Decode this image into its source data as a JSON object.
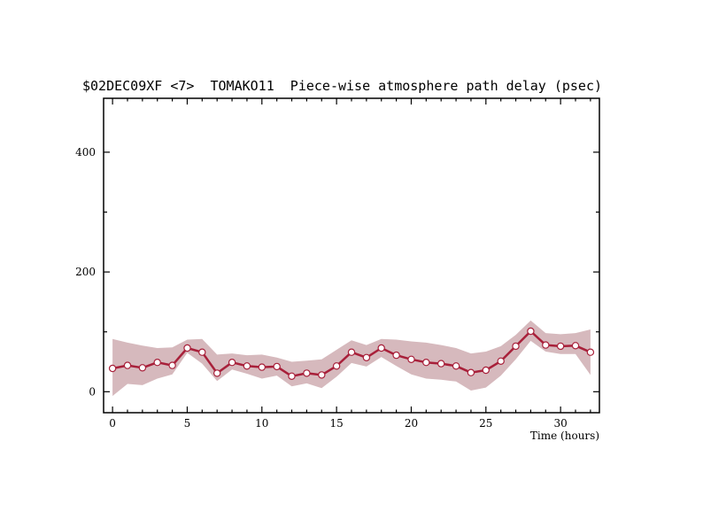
{
  "chart_data": {
    "type": "line",
    "title": "$02DEC09XF <7>  TOMAKO11  Piece-wise atmosphere path delay (psec)",
    "xlabel": "Time (hours)",
    "ylabel": "",
    "xlim": [
      -0.6,
      32.6
    ],
    "ylim": [
      -35,
      490
    ],
    "x_ticks": [
      0,
      5,
      10,
      15,
      20,
      25,
      30
    ],
    "y_ticks": [
      0,
      200,
      400
    ],
    "grid": false,
    "series": [
      {
        "x": [
          0,
          1,
          2,
          3,
          4,
          5,
          6,
          7,
          8,
          9,
          10,
          11,
          12,
          13,
          14,
          15,
          16,
          17,
          18,
          19,
          20,
          21,
          22,
          23,
          24,
          25,
          26,
          27,
          28,
          29,
          30,
          31,
          32
        ],
        "values": [
          39,
          44,
          40,
          49,
          44,
          73,
          66,
          31,
          49,
          43,
          41,
          42,
          26,
          31,
          28,
          43,
          66,
          57,
          73,
          61,
          54,
          49,
          47,
          43,
          32,
          36,
          51,
          76,
          101,
          78,
          76,
          77,
          66
        ],
        "upper": [
          88,
          82,
          77,
          73,
          74,
          87,
          88,
          62,
          64,
          61,
          62,
          57,
          50,
          52,
          54,
          70,
          86,
          78,
          88,
          87,
          84,
          82,
          78,
          73,
          64,
          67,
          76,
          95,
          119,
          98,
          96,
          98,
          104
        ],
        "lower": [
          -7,
          13,
          11,
          22,
          29,
          65,
          47,
          18,
          37,
          30,
          22,
          27,
          9,
          14,
          6,
          25,
          48,
          42,
          58,
          43,
          29,
          22,
          20,
          17,
          2,
          7,
          27,
          54,
          85,
          67,
          63,
          63,
          28
        ]
      }
    ],
    "colors": {
      "line": "#a8203a",
      "band": "#d6b9bd",
      "marker_fill": "#ffffff"
    }
  }
}
